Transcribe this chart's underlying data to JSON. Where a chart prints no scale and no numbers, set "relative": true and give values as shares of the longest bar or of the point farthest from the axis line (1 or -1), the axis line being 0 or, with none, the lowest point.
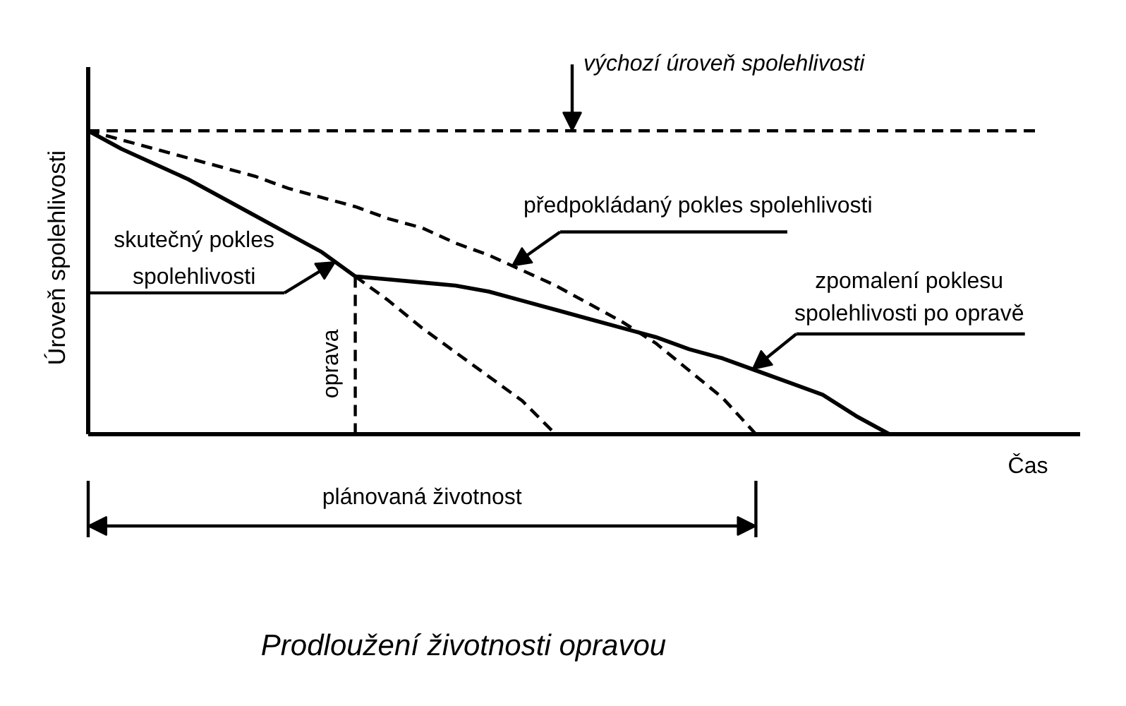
{
  "chart_data": {
    "type": "line",
    "title": "Prodloužení životnosti opravou",
    "xlabel": "Čas",
    "ylabel": "Úroveň spolehlivosti",
    "relative": true,
    "categories": [
      null,
      null,
      null,
      null,
      null,
      null,
      null,
      null,
      null,
      null,
      null,
      null,
      null,
      null,
      null,
      null,
      null,
      null,
      null,
      null,
      null,
      null,
      null,
      null,
      null
    ],
    "series": [
      {
        "name": "skutečný pokles spolehlivosti",
        "color": "#000000",
        "line_style": "solid",
        "values": [
          1,
          0.94,
          0.89,
          0.84,
          0.78,
          0.72,
          0.66,
          0.6,
          0.52,
          null,
          null,
          null,
          null,
          null,
          null,
          null,
          null,
          null,
          null,
          null,
          null,
          null,
          null,
          null,
          null
        ]
      },
      {
        "name": "zpomalení poklesu spolehlivosti po opravě",
        "color": "#000000",
        "line_style": "solid",
        "values": [
          null,
          null,
          null,
          null,
          null,
          null,
          null,
          null,
          0.52,
          0.51,
          0.5,
          0.49,
          0.47,
          0.44,
          0.41,
          0.38,
          0.35,
          0.32,
          0.28,
          0.25,
          0.21,
          0.17,
          0.13,
          0.06,
          0
        ]
      },
      {
        "name": "předpokládaný pokles spolehlivosti",
        "color": "#000000",
        "line_style": "dashed",
        "values": [
          1,
          0.97,
          0.94,
          0.91,
          0.88,
          0.85,
          0.81,
          0.78,
          0.75,
          0.71,
          0.68,
          0.63,
          0.59,
          0.54,
          0.49,
          0.43,
          0.37,
          0.3,
          0.21,
          0.12,
          0,
          null,
          null,
          null,
          null
        ]
      },
      {
        "color": "#000000",
        "line_style": "dashed",
        "values": [
          null,
          null,
          null,
          null,
          null,
          null,
          null,
          null,
          0.52,
          0.44,
          0.35,
          0.27,
          0.19,
          0.11,
          0,
          null,
          null,
          null,
          null,
          null,
          null,
          null,
          null,
          null,
          null
        ]
      }
    ],
    "ref_lines": [
      {
        "axis": "y",
        "value": 1,
        "label": "výchozí úroveň spolehlivosti",
        "line_style": "dashed"
      }
    ],
    "annotations": [
      "oprava",
      "plánovaná životnost"
    ]
  }
}
